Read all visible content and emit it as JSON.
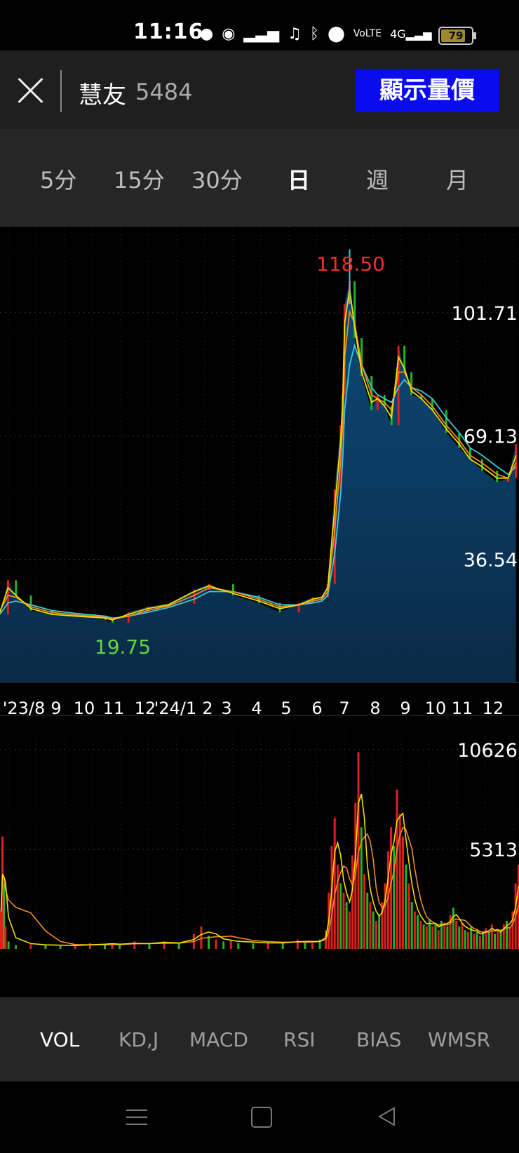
{
  "status": {
    "time": "11:16",
    "battery": "79"
  },
  "header": {
    "stock_name": "慧友",
    "stock_code": "5484",
    "show_button": "顯示量價"
  },
  "periods": [
    "5分",
    "15分",
    "30分",
    "日",
    "週",
    "月"
  ],
  "active_period": "日",
  "indicators": [
    "VOL",
    "KD,J",
    "MACD",
    "RSI",
    "BIAS",
    "WMSR"
  ],
  "active_indicator": "VOL",
  "colors": {
    "up": "#e0201c",
    "down": "#22b422",
    "ma_short": "#f0e000",
    "ma_mid": "#f08a28",
    "ma_long": "#40c8d8",
    "area": "#0b3d66",
    "high_label": "#e8322a",
    "low_label": "#62d645"
  },
  "chart_data": {
    "type": "line",
    "price": {
      "x": [
        "2023-07-25",
        "2023-08-02",
        "2023-08-10",
        "2023-08-25",
        "2023-09-15",
        "2023-10-10",
        "2023-11-08",
        "2023-11-15",
        "2023-12-01",
        "2023-12-20",
        "2024-01-10",
        "2024-02-05",
        "2024-02-20",
        "2024-03-15",
        "2024-04-10",
        "2024-05-01",
        "2024-05-20",
        "2024-06-03",
        "2024-06-12",
        "2024-06-18",
        "2024-06-25",
        "2024-07-01",
        "2024-07-03",
        "2024-07-05",
        "2024-07-10",
        "2024-07-15",
        "2024-07-22",
        "2024-08-01",
        "2024-08-07",
        "2024-08-14",
        "2024-08-21",
        "2024-08-28",
        "2024-09-03",
        "2024-09-10",
        "2024-09-20",
        "2024-10-01",
        "2024-10-15",
        "2024-10-28",
        "2024-11-08",
        "2024-11-20",
        "2024-12-05",
        "2024-12-16",
        "2024-12-24"
      ],
      "close": [
        22,
        31,
        27,
        23,
        22,
        21.5,
        20.5,
        19.8,
        22.5,
        24,
        24.8,
        28.5,
        30,
        27,
        25,
        22.5,
        25,
        26.5,
        26.5,
        30,
        55,
        72,
        80,
        104,
        110,
        95,
        85,
        76,
        80,
        77,
        72,
        93,
        86,
        80,
        79,
        76,
        70,
        66,
        63,
        60,
        57,
        58,
        67
      ],
      "ma_short": [
        22.5,
        29,
        27,
        23.5,
        22,
        21.5,
        21,
        20.5,
        22,
        23.5,
        24.5,
        28,
        29.5,
        27.5,
        25.5,
        23.5,
        24.5,
        26,
        26.5,
        29,
        50,
        68,
        78,
        99,
        108,
        98,
        86,
        78,
        79,
        77,
        74,
        90,
        87,
        81,
        79,
        76,
        71,
        67,
        63,
        61,
        58,
        58,
        64
      ],
      "ma_mid": [
        23,
        27,
        26.5,
        24,
        22.5,
        21.8,
        21.2,
        20.8,
        21.5,
        23,
        24.2,
        27,
        29,
        28,
        26,
        24,
        24.5,
        25.5,
        26,
        28,
        44,
        63,
        72,
        90,
        102,
        99,
        88,
        80,
        79,
        78,
        76,
        86,
        86,
        82,
        80,
        77,
        72,
        68,
        64,
        62,
        59,
        58,
        62
      ],
      "ma_long": [
        22,
        25,
        25.5,
        24.5,
        23,
        22.2,
        21.5,
        21,
        21.5,
        22.5,
        23.8,
        26,
        28,
        28,
        26.5,
        24.5,
        24.5,
        25,
        25.5,
        27,
        38,
        54,
        63,
        76,
        88,
        93,
        88,
        82,
        80,
        79,
        78,
        82,
        84,
        82,
        81,
        79,
        74,
        70,
        66,
        64,
        61,
        59,
        61
      ],
      "high_label": "118.50",
      "low_label": "19.75",
      "axis_labels": [
        "101.71",
        "69.13",
        "36.54"
      ],
      "ylim": [
        4,
        124.5
      ]
    },
    "volume": {
      "bars": [
        [
          0,
          2000,
          "up"
        ],
        [
          2,
          6000,
          "up"
        ],
        [
          4,
          3500,
          "down"
        ],
        [
          6,
          1200,
          "up"
        ],
        [
          10,
          400,
          "down"
        ],
        [
          20,
          200,
          "down"
        ],
        [
          40,
          250,
          "up"
        ],
        [
          60,
          200,
          "down"
        ],
        [
          80,
          150,
          "down"
        ],
        [
          100,
          200,
          "up"
        ],
        [
          120,
          300,
          "up"
        ],
        [
          140,
          250,
          "down"
        ],
        [
          150,
          300,
          "up"
        ],
        [
          160,
          200,
          "down"
        ],
        [
          180,
          400,
          "up"
        ],
        [
          200,
          250,
          "down"
        ],
        [
          220,
          400,
          "up"
        ],
        [
          240,
          300,
          "down"
        ],
        [
          260,
          800,
          "up"
        ],
        [
          270,
          1200,
          "up"
        ],
        [
          280,
          700,
          "down"
        ],
        [
          290,
          500,
          "up"
        ],
        [
          300,
          400,
          "down"
        ],
        [
          310,
          500,
          "up"
        ],
        [
          320,
          300,
          "down"
        ],
        [
          340,
          300,
          "down"
        ],
        [
          360,
          350,
          "up"
        ],
        [
          380,
          300,
          "down"
        ],
        [
          400,
          500,
          "up"
        ],
        [
          410,
          400,
          "down"
        ],
        [
          420,
          300,
          "up"
        ],
        [
          430,
          500,
          "down"
        ],
        [
          438,
          1000,
          "up"
        ],
        [
          442,
          3000,
          "up"
        ],
        [
          446,
          5500,
          "up"
        ],
        [
          450,
          7000,
          "up"
        ],
        [
          454,
          4500,
          "up"
        ],
        [
          458,
          3500,
          "down"
        ],
        [
          462,
          3000,
          "up"
        ],
        [
          466,
          2500,
          "down"
        ],
        [
          470,
          2000,
          "up"
        ],
        [
          474,
          5000,
          "up"
        ],
        [
          478,
          7800,
          "up"
        ],
        [
          482,
          10500,
          "up"
        ],
        [
          486,
          6500,
          "down"
        ],
        [
          490,
          4000,
          "up"
        ],
        [
          494,
          3000,
          "down"
        ],
        [
          498,
          2500,
          "up"
        ],
        [
          502,
          2000,
          "down"
        ],
        [
          506,
          1500,
          "up"
        ],
        [
          510,
          1800,
          "down"
        ],
        [
          514,
          2500,
          "up"
        ],
        [
          518,
          3500,
          "up"
        ],
        [
          522,
          5200,
          "up"
        ],
        [
          526,
          6500,
          "up"
        ],
        [
          530,
          5500,
          "down"
        ],
        [
          534,
          8500,
          "up"
        ],
        [
          538,
          7200,
          "up"
        ],
        [
          542,
          6000,
          "up"
        ],
        [
          546,
          4500,
          "down"
        ],
        [
          550,
          3500,
          "up"
        ],
        [
          554,
          2500,
          "down"
        ],
        [
          558,
          2000,
          "up"
        ],
        [
          562,
          1800,
          "down"
        ],
        [
          566,
          1500,
          "up"
        ],
        [
          570,
          1300,
          "down"
        ],
        [
          574,
          1200,
          "up"
        ],
        [
          578,
          1600,
          "down"
        ],
        [
          582,
          1200,
          "up"
        ],
        [
          586,
          1300,
          "down"
        ],
        [
          590,
          1000,
          "up"
        ],
        [
          594,
          1500,
          "down"
        ],
        [
          598,
          1400,
          "up"
        ],
        [
          602,
          1200,
          "down"
        ],
        [
          606,
          1800,
          "up"
        ],
        [
          610,
          2200,
          "down"
        ],
        [
          614,
          1500,
          "up"
        ],
        [
          618,
          1200,
          "down"
        ],
        [
          622,
          1400,
          "up"
        ],
        [
          626,
          1000,
          "down"
        ],
        [
          630,
          900,
          "up"
        ],
        [
          634,
          1200,
          "down"
        ],
        [
          638,
          800,
          "up"
        ],
        [
          642,
          900,
          "down"
        ],
        [
          646,
          700,
          "up"
        ],
        [
          650,
          900,
          "down"
        ],
        [
          654,
          1100,
          "up"
        ],
        [
          658,
          900,
          "down"
        ],
        [
          662,
          1300,
          "up"
        ],
        [
          666,
          800,
          "down"
        ],
        [
          670,
          1000,
          "up"
        ],
        [
          674,
          900,
          "down"
        ],
        [
          678,
          1300,
          "up"
        ],
        [
          682,
          1500,
          "down"
        ],
        [
          686,
          1200,
          "up"
        ],
        [
          690,
          2000,
          "up"
        ],
        [
          694,
          3500,
          "up"
        ],
        [
          698,
          4500,
          "up"
        ]
      ],
      "axis_labels": [
        "10626",
        "5313"
      ],
      "ylim": [
        0,
        11600
      ]
    },
    "x_ticks": [
      "'23/8",
      "9",
      "10",
      "11",
      "12",
      "'24/1",
      "2",
      "3",
      "4",
      "5",
      "6",
      "7",
      "8",
      "9",
      "10",
      "11",
      "12"
    ]
  }
}
